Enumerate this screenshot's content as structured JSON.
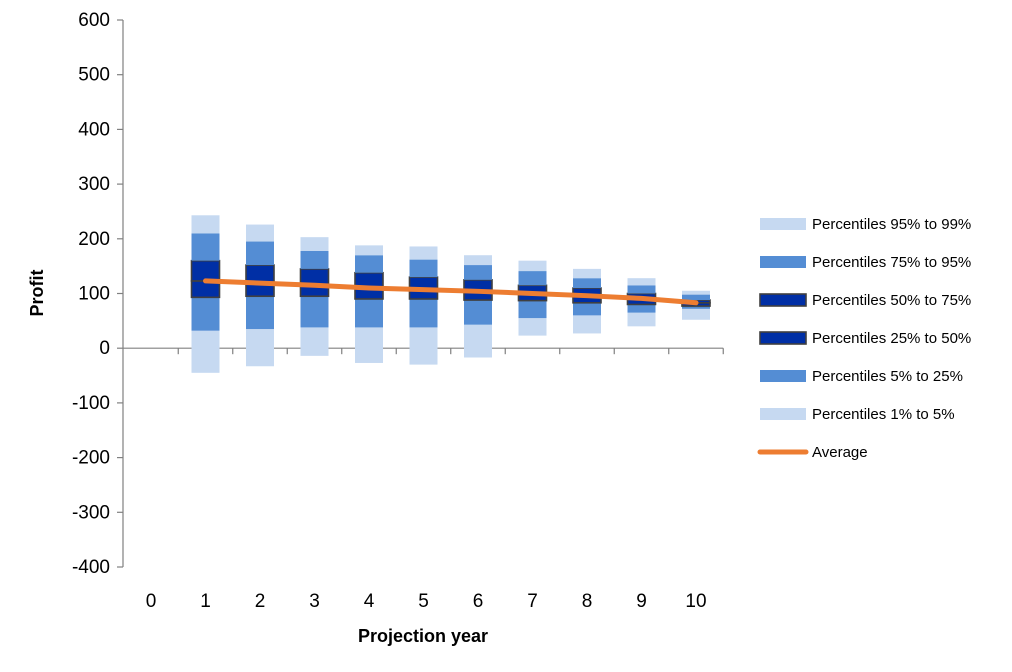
{
  "chart_data": {
    "type": "box",
    "title": "",
    "xlabel": "Projection year",
    "ylabel": "Profit",
    "ylim": [
      -400,
      600
    ],
    "y_ticks": [
      600,
      500,
      400,
      300,
      200,
      100,
      0,
      -100,
      -200,
      -300,
      -400
    ],
    "x_ticks": [
      0,
      1,
      2,
      3,
      4,
      5,
      6,
      7,
      8,
      9,
      10
    ],
    "grid": false,
    "legend_position": "right",
    "colors": {
      "light": "#c6d9f1",
      "mid": "#548dd4",
      "dark": "#002fa5",
      "dark_border": "#404040",
      "average": "#ed7d31"
    },
    "legend": [
      {
        "label": "Percentiles 95% to 99%",
        "style": "light"
      },
      {
        "label": "Percentiles 75% to 95%",
        "style": "mid"
      },
      {
        "label": "Percentiles 50% to 75%",
        "style": "dark"
      },
      {
        "label": "Percentiles 25% to 50%",
        "style": "dark"
      },
      {
        "label": "Percentiles 5% to 25%",
        "style": "mid"
      },
      {
        "label": "Percentiles 1% to 5%",
        "style": "light"
      },
      {
        "label": "Average",
        "style": "line"
      }
    ],
    "series": [
      {
        "year": 1,
        "p1": -45,
        "p5": 32,
        "p25": 93,
        "p50": 123,
        "p75": 160,
        "p95": 210,
        "p99": 243,
        "average": 123
      },
      {
        "year": 2,
        "p1": -33,
        "p5": 35,
        "p25": 95,
        "p50": 120,
        "p75": 152,
        "p95": 195,
        "p99": 226,
        "average": 119
      },
      {
        "year": 3,
        "p1": -14,
        "p5": 38,
        "p25": 95,
        "p50": 116,
        "p75": 145,
        "p95": 178,
        "p99": 203,
        "average": 115
      },
      {
        "year": 4,
        "p1": -27,
        "p5": 38,
        "p25": 90,
        "p50": 111,
        "p75": 138,
        "p95": 170,
        "p99": 188,
        "average": 110
      },
      {
        "year": 5,
        "p1": -30,
        "p5": 38,
        "p25": 90,
        "p50": 108,
        "p75": 130,
        "p95": 162,
        "p99": 186,
        "average": 107
      },
      {
        "year": 6,
        "p1": -17,
        "p5": 43,
        "p25": 88,
        "p50": 103,
        "p75": 125,
        "p95": 152,
        "p99": 170,
        "average": 104
      },
      {
        "year": 7,
        "p1": 23,
        "p5": 55,
        "p25": 87,
        "p50": 100,
        "p75": 115,
        "p95": 141,
        "p99": 160,
        "average": 100
      },
      {
        "year": 8,
        "p1": 27,
        "p5": 60,
        "p25": 83,
        "p50": 96,
        "p75": 110,
        "p95": 128,
        "p99": 145,
        "average": 96
      },
      {
        "year": 9,
        "p1": 40,
        "p5": 65,
        "p25": 80,
        "p50": 90,
        "p75": 100,
        "p95": 115,
        "p99": 128,
        "average": 91
      },
      {
        "year": 10,
        "p1": 52,
        "p5": 72,
        "p25": 77,
        "p50": 83,
        "p75": 88,
        "p95": 98,
        "p99": 105,
        "average": 83
      }
    ]
  }
}
